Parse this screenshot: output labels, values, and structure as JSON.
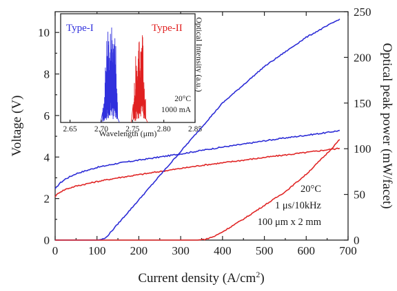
{
  "chart_data": [
    {
      "type": "line",
      "panel": "main",
      "xlabel": "Current density (A/cm",
      "xlabel_sup": "2",
      "xlabel_end": ")",
      "ylabel_left": "Voltage (V)",
      "ylabel_right": "Optical peak  power (mW/facet)",
      "xlim": [
        0,
        700
      ],
      "ylim_left": [
        0,
        11
      ],
      "ylim_right": [
        0,
        250
      ],
      "x_ticks": [
        0,
        100,
        200,
        300,
        400,
        500,
        600,
        700
      ],
      "y_left_ticks": [
        0,
        2,
        4,
        6,
        8,
        10
      ],
      "y_right_ticks": [
        0,
        50,
        100,
        150,
        200,
        250
      ],
      "annotations": [
        "20°C",
        "1 μs/10kHz",
        "100 μm x 2 mm"
      ],
      "series": [
        {
          "color": "#2b2bd6",
          "axis": "left",
          "x": [
            0,
            10,
            25,
            50,
            100,
            150,
            200,
            250,
            300,
            350,
            400,
            450,
            500,
            550,
            600,
            650,
            680
          ],
          "y": [
            2.45,
            2.72,
            2.95,
            3.2,
            3.5,
            3.7,
            3.85,
            4.0,
            4.15,
            4.32,
            4.48,
            4.62,
            4.78,
            4.92,
            5.05,
            5.18,
            5.28
          ]
        },
        {
          "color": "#e02525",
          "axis": "left",
          "x": [
            0,
            10,
            25,
            50,
            100,
            150,
            200,
            250,
            300,
            350,
            400,
            450,
            500,
            550,
            600,
            650,
            680
          ],
          "y": [
            2.1,
            2.3,
            2.45,
            2.6,
            2.82,
            3.0,
            3.15,
            3.3,
            3.45,
            3.6,
            3.72,
            3.85,
            3.98,
            4.1,
            4.22,
            4.35,
            4.42
          ]
        },
        {
          "color": "#2b2bd6",
          "axis": "right",
          "x": [
            0,
            100,
            108,
            120,
            200,
            300,
            400,
            500,
            600,
            680
          ],
          "y": [
            0,
            0,
            0.5,
            2,
            44,
            97,
            150,
            190,
            222,
            242
          ]
        },
        {
          "color": "#e02525",
          "axis": "right",
          "x": [
            0,
            340,
            360,
            380,
            400,
            450,
            500,
            550,
            600,
            650,
            680
          ],
          "y": [
            0,
            0,
            1,
            4,
            9,
            23,
            38,
            53,
            72,
            95,
            110
          ]
        }
      ]
    },
    {
      "type": "line",
      "panel": "inset",
      "xlabel": "Wavelength (μm)",
      "ylabel": "Optical Intensity (a.u.)",
      "xlim": [
        2.635,
        2.85
      ],
      "ylim": [
        0,
        1
      ],
      "x_ticks": [
        "2.65",
        "2.70",
        "2.75",
        "2.80",
        "2.85"
      ],
      "legend": [
        "Type-I",
        "Type-II"
      ],
      "annotations": [
        "20°C",
        "1000 mA"
      ],
      "series": [
        {
          "color": "#3030dd",
          "x": [
            2.703,
            2.705,
            2.707,
            2.709,
            2.711,
            2.713,
            2.715,
            2.717,
            2.719,
            2.721,
            2.723,
            2.725
          ],
          "y": [
            0.15,
            0.3,
            0.55,
            0.8,
            0.95,
            0.7,
            0.9,
            1.0,
            0.88,
            0.98,
            0.75,
            0.35
          ]
        },
        {
          "color": "#e02020",
          "x": [
            2.752,
            2.754,
            2.756,
            2.758,
            2.76,
            2.762,
            2.764,
            2.766,
            2.768,
            2.77
          ],
          "y": [
            0.25,
            0.45,
            0.7,
            0.6,
            0.82,
            0.72,
            0.92,
            0.85,
            0.55,
            0.3
          ]
        }
      ]
    }
  ]
}
